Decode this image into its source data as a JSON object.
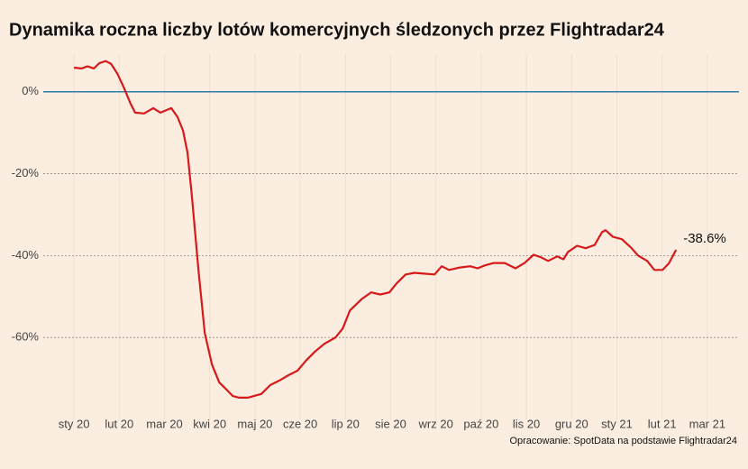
{
  "chart_data": {
    "type": "line",
    "title": "Dynamika roczna liczby lotów komercyjnych śledzonych przez Flightradar24",
    "source": "Opracowanie: SpotData na podstawie Flightradar24",
    "annotation": "-38.6%",
    "color": "#d7191c",
    "zero_line_color": "#2b7fae",
    "grid": true,
    "x": [
      0,
      0.16,
      0.3,
      0.44,
      0.56,
      0.7,
      0.82,
      0.96,
      1.1,
      1.25,
      1.35,
      1.55,
      1.75,
      1.91,
      2.15,
      2.29,
      2.41,
      2.51,
      2.61,
      2.75,
      2.89,
      3.05,
      3.21,
      3.35,
      3.51,
      3.65,
      3.84,
      4.14,
      4.34,
      4.54,
      4.74,
      4.94,
      5.14,
      5.34,
      5.54,
      5.78,
      5.94,
      6.1,
      6.24,
      6.37,
      6.57,
      6.77,
      6.97,
      7.13,
      7.33,
      7.53,
      7.73,
      7.97,
      8.13,
      8.29,
      8.53,
      8.76,
      8.92,
      9.08,
      9.28,
      9.52,
      9.76,
      9.96,
      10.16,
      10.32,
      10.48,
      10.68,
      10.82,
      10.92,
      11.12,
      11.31,
      11.51,
      11.67,
      11.75,
      11.91,
      12.11,
      12.31,
      12.47,
      12.67,
      12.83,
      13.01,
      13.15,
      13.31
    ],
    "values": [
      5.9,
      5.7,
      6.2,
      5.7,
      7,
      7.5,
      6.8,
      4.4,
      1.1,
      -2.9,
      -5.1,
      -5.3,
      -4,
      -5.1,
      -4,
      -6.2,
      -9.5,
      -14.9,
      -25.9,
      -43.5,
      -58.9,
      -66.6,
      -71,
      -72.5,
      -74.3,
      -74.7,
      -74.7,
      -73.8,
      -71.6,
      -70.5,
      -69.2,
      -68.1,
      -65.5,
      -63.3,
      -61.5,
      -60,
      -57.8,
      -53.4,
      -51.9,
      -50.5,
      -49,
      -49.5,
      -49,
      -46.8,
      -44.6,
      -44.2,
      -44.4,
      -44.6,
      -42.6,
      -43.5,
      -42.9,
      -42.6,
      -43.1,
      -42.4,
      -41.8,
      -41.8,
      -43.1,
      -41.8,
      -39.8,
      -40.4,
      -41.3,
      -40.2,
      -40.9,
      -39.1,
      -37.6,
      -38.2,
      -37.4,
      -34.3,
      -33.8,
      -35.4,
      -36,
      -38,
      -40,
      -41.3,
      -43.5,
      -43.5,
      -41.9,
      -38.6
    ],
    "xlim": [
      -0.68,
      14.7
    ],
    "xticks": [
      {
        "value": 0,
        "label": "sty 20"
      },
      {
        "value": 1,
        "label": "lut 20"
      },
      {
        "value": 2,
        "label": "mar 20"
      },
      {
        "value": 3,
        "label": "kwi 20"
      },
      {
        "value": 4,
        "label": "maj 20"
      },
      {
        "value": 5,
        "label": "cze 20"
      },
      {
        "value": 6,
        "label": "lip 20"
      },
      {
        "value": 7,
        "label": "sie 20"
      },
      {
        "value": 8,
        "label": "wrz 20"
      },
      {
        "value": 9,
        "label": "paź 20"
      },
      {
        "value": 10,
        "label": "lis 20"
      },
      {
        "value": 11,
        "label": "gru 20"
      },
      {
        "value": 12,
        "label": "sty 21"
      },
      {
        "value": 13,
        "label": "lut 21"
      },
      {
        "value": 14,
        "label": "mar 21"
      }
    ],
    "ylim": [
      -80,
      9.2
    ],
    "yticks": [
      {
        "value": 0,
        "label": "0%"
      },
      {
        "value": -20,
        "label": "-20%"
      },
      {
        "value": -40,
        "label": "-40%"
      },
      {
        "value": -60,
        "label": "-60%"
      }
    ]
  }
}
